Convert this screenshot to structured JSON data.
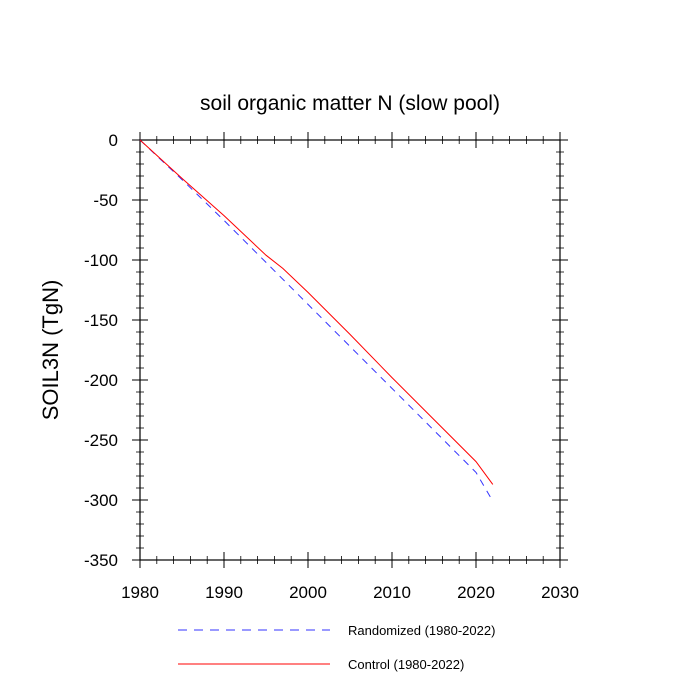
{
  "chart_data": {
    "type": "line",
    "title": "soil organic matter N (slow pool)",
    "xlabel": "",
    "ylabel": "SOIL3N  (TgN)",
    "xlim": [
      1980,
      2030
    ],
    "ylim": [
      -350,
      0
    ],
    "xticks": [
      1980,
      1990,
      2000,
      2010,
      2020,
      2030
    ],
    "yticks": [
      0,
      -50,
      -100,
      -150,
      -200,
      -250,
      -300,
      -350
    ],
    "xtick_labels": [
      "1980",
      "1990",
      "2000",
      "2010",
      "2020",
      "2030"
    ],
    "ytick_labels": [
      "0",
      "-50",
      "-100",
      "-150",
      "-200",
      "-250",
      "-300",
      "-350"
    ],
    "series": [
      {
        "name": "Randomized (1980-2022)",
        "color": "#3333ff",
        "dash": "dashed",
        "x": [
          1980,
          1985,
          1990,
          1995,
          2000,
          2005,
          2010,
          2015,
          2020,
          2022
        ],
        "y": [
          0,
          -33,
          -67,
          -102,
          -137,
          -172,
          -207,
          -242,
          -277,
          -301
        ]
      },
      {
        "name": "Control (1980-2022)",
        "color": "#ff0000",
        "dash": "solid",
        "x": [
          1980,
          1985,
          1990,
          1995,
          1997,
          2000,
          2005,
          2010,
          2015,
          2020,
          2022
        ],
        "y": [
          0,
          -32,
          -63,
          -96,
          -107,
          -127,
          -162,
          -198,
          -233,
          -268,
          -287
        ]
      }
    ],
    "legend": {
      "position": "bottom",
      "entries": [
        "Randomized (1980-2022)",
        "Control (1980-2022)"
      ]
    }
  }
}
